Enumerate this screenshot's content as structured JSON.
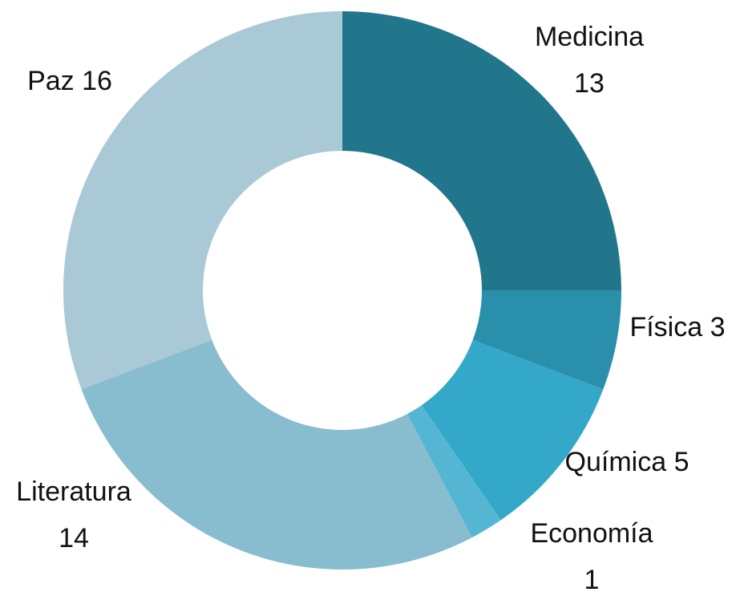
{
  "chart_data": {
    "type": "donut",
    "categories": [
      "Medicina",
      "Física",
      "Química",
      "Economía",
      "Literatura",
      "Paz"
    ],
    "values": [
      13,
      3,
      5,
      1,
      14,
      16
    ],
    "colors": [
      "#22768c",
      "#2a8fab",
      "#33a8c8",
      "#55b6d4",
      "#88bccf",
      "#a9c9d6"
    ]
  }
}
